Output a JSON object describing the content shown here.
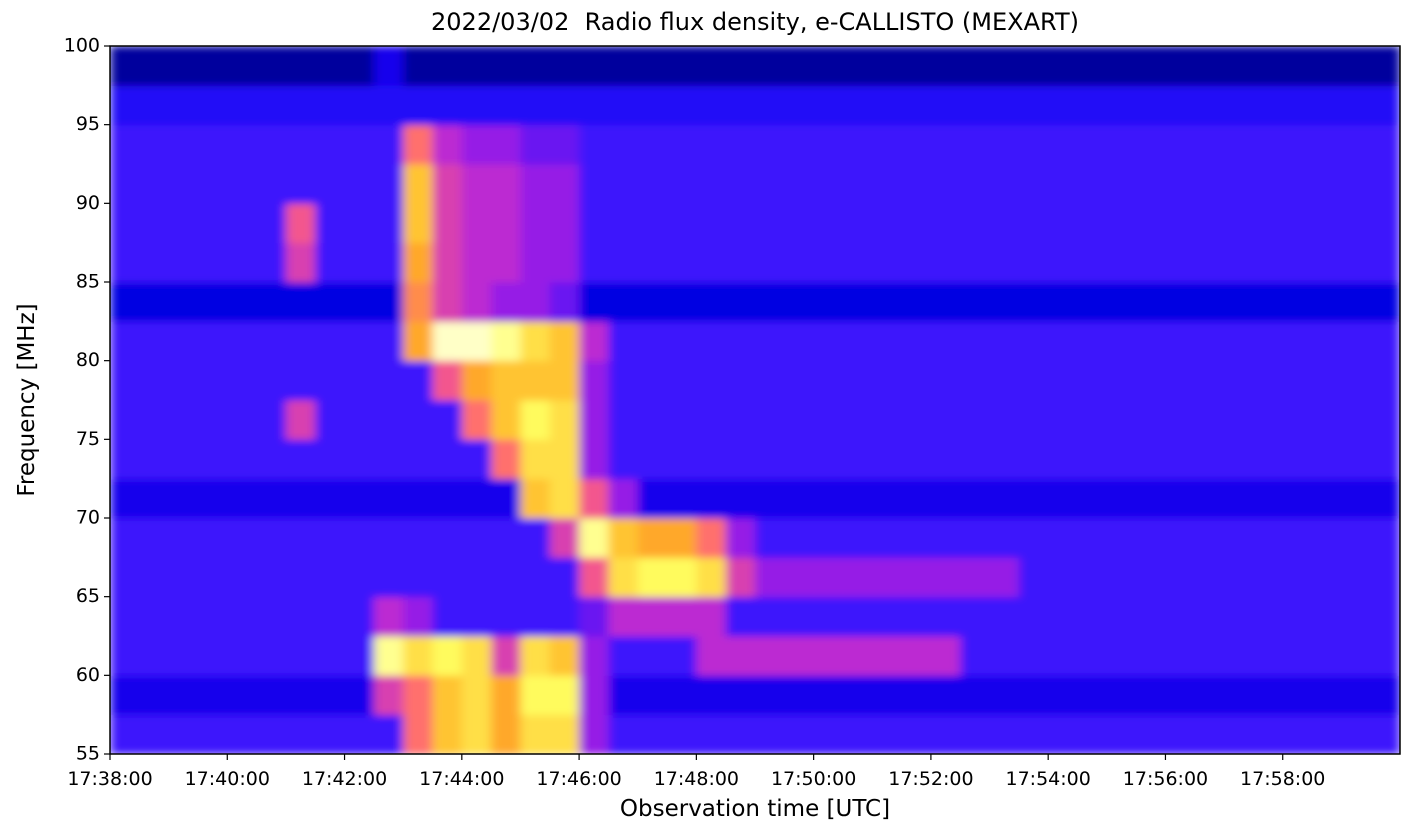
{
  "chart_data": {
    "type": "heatmap",
    "title": "2022/03/02  Radio flux density, e-CALLISTO (MEXART)",
    "x_label": "Observation time [UTC]",
    "y_label": "Frequency [MHz]",
    "xlim": [
      1058,
      1080
    ],
    "ylim": [
      55,
      100
    ],
    "xticks": [
      {
        "value": 1058,
        "label": "17:38:00"
      },
      {
        "value": 1060,
        "label": "17:40:00"
      },
      {
        "value": 1062,
        "label": "17:42:00"
      },
      {
        "value": 1064,
        "label": "17:44:00"
      },
      {
        "value": 1066,
        "label": "17:46:00"
      },
      {
        "value": 1068,
        "label": "17:48:00"
      },
      {
        "value": 1070,
        "label": "17:50:00"
      },
      {
        "value": 1072,
        "label": "17:52:00"
      },
      {
        "value": 1074,
        "label": "17:54:00"
      },
      {
        "value": 1076,
        "label": "17:56:00"
      },
      {
        "value": 1078,
        "label": "17:58:00"
      }
    ],
    "yticks": [
      55,
      60,
      65,
      70,
      75,
      80,
      85,
      90,
      95,
      100
    ],
    "xbins": [
      1058,
      1058.5,
      1059,
      1059.5,
      1060,
      1060.5,
      1061,
      1061.5,
      1062,
      1062.5,
      1063,
      1063.5,
      1064,
      1064.5,
      1065,
      1065.5,
      1066,
      1066.5,
      1067,
      1067.5,
      1068,
      1068.5,
      1069,
      1069.5,
      1070,
      1070.5,
      1071,
      1071.5,
      1072,
      1072.5,
      1073,
      1073.5,
      1074,
      1074.5,
      1075,
      1075.5,
      1076,
      1076.5,
      1077,
      1077.5,
      1078,
      1078.5,
      1079,
      1079.5,
      1080
    ],
    "ybins": [
      55,
      57.5,
      60,
      62.5,
      65,
      67.5,
      70,
      72.5,
      75,
      77.5,
      80,
      82.5,
      85,
      87.5,
      90,
      92.5,
      95,
      97.5,
      100
    ],
    "colormap": [
      "#000000",
      "#0000e0",
      "#3010ff",
      "#b020e0",
      "#ff6080",
      "#ffb020",
      "#ffff60",
      "#ffffff"
    ],
    "values": [
      [
        0.3,
        0.3,
        0.3,
        0.3,
        0.3,
        0.3,
        0.3,
        0.3,
        0.3,
        0.3,
        0.6,
        0.75,
        0.8,
        0.7,
        0.8,
        0.8,
        0.4,
        0.3,
        0.3,
        0.3,
        0.3,
        0.3,
        0.3,
        0.3,
        0.3,
        0.3,
        0.3,
        0.3,
        0.3,
        0.3,
        0.3,
        0.3,
        0.3,
        0.3,
        0.3,
        0.3,
        0.3,
        0.3,
        0.3,
        0.3,
        0.3,
        0.3,
        0.3,
        0.3
      ],
      [
        0.2,
        0.2,
        0.2,
        0.2,
        0.2,
        0.2,
        0.2,
        0.2,
        0.2,
        0.5,
        0.6,
        0.75,
        0.8,
        0.7,
        0.85,
        0.85,
        0.4,
        0.2,
        0.2,
        0.2,
        0.2,
        0.2,
        0.2,
        0.2,
        0.2,
        0.2,
        0.2,
        0.2,
        0.2,
        0.2,
        0.2,
        0.2,
        0.2,
        0.2,
        0.2,
        0.2,
        0.2,
        0.2,
        0.2,
        0.2,
        0.2,
        0.2,
        0.2,
        0.2
      ],
      [
        0.3,
        0.3,
        0.3,
        0.3,
        0.3,
        0.3,
        0.3,
        0.3,
        0.3,
        0.9,
        0.8,
        0.85,
        0.8,
        0.5,
        0.8,
        0.75,
        0.4,
        0.3,
        0.3,
        0.3,
        0.45,
        0.45,
        0.45,
        0.45,
        0.45,
        0.45,
        0.45,
        0.45,
        0.45,
        0.3,
        0.3,
        0.3,
        0.3,
        0.3,
        0.3,
        0.3,
        0.3,
        0.3,
        0.3,
        0.3,
        0.3,
        0.3,
        0.3,
        0.3
      ],
      [
        0.3,
        0.3,
        0.3,
        0.3,
        0.3,
        0.3,
        0.3,
        0.3,
        0.3,
        0.45,
        0.4,
        0.3,
        0.3,
        0.3,
        0.3,
        0.3,
        0.35,
        0.45,
        0.45,
        0.45,
        0.45,
        0.3,
        0.3,
        0.3,
        0.3,
        0.3,
        0.3,
        0.3,
        0.3,
        0.3,
        0.3,
        0.3,
        0.3,
        0.3,
        0.3,
        0.3,
        0.3,
        0.3,
        0.3,
        0.3,
        0.3,
        0.3,
        0.3,
        0.3
      ],
      [
        0.3,
        0.3,
        0.3,
        0.3,
        0.3,
        0.3,
        0.3,
        0.3,
        0.3,
        0.3,
        0.3,
        0.3,
        0.3,
        0.3,
        0.3,
        0.3,
        0.55,
        0.8,
        0.85,
        0.85,
        0.8,
        0.5,
        0.4,
        0.4,
        0.4,
        0.4,
        0.4,
        0.4,
        0.4,
        0.4,
        0.4,
        0.3,
        0.3,
        0.3,
        0.3,
        0.3,
        0.3,
        0.3,
        0.3,
        0.3,
        0.3,
        0.3,
        0.3,
        0.3
      ],
      [
        0.3,
        0.3,
        0.3,
        0.3,
        0.3,
        0.3,
        0.3,
        0.3,
        0.3,
        0.3,
        0.3,
        0.3,
        0.3,
        0.3,
        0.3,
        0.5,
        0.9,
        0.75,
        0.7,
        0.7,
        0.6,
        0.4,
        0.3,
        0.3,
        0.3,
        0.3,
        0.3,
        0.3,
        0.3,
        0.3,
        0.3,
        0.3,
        0.3,
        0.3,
        0.3,
        0.3,
        0.3,
        0.3,
        0.3,
        0.3,
        0.3,
        0.3,
        0.3,
        0.3
      ],
      [
        0.2,
        0.2,
        0.2,
        0.2,
        0.2,
        0.2,
        0.2,
        0.2,
        0.2,
        0.2,
        0.2,
        0.2,
        0.2,
        0.2,
        0.75,
        0.8,
        0.55,
        0.4,
        0.2,
        0.2,
        0.2,
        0.2,
        0.2,
        0.2,
        0.2,
        0.2,
        0.2,
        0.2,
        0.2,
        0.2,
        0.2,
        0.2,
        0.2,
        0.2,
        0.2,
        0.2,
        0.2,
        0.2,
        0.2,
        0.2,
        0.2,
        0.2,
        0.2,
        0.2
      ],
      [
        0.3,
        0.3,
        0.3,
        0.3,
        0.3,
        0.3,
        0.3,
        0.3,
        0.3,
        0.3,
        0.3,
        0.3,
        0.3,
        0.6,
        0.8,
        0.8,
        0.4,
        0.3,
        0.3,
        0.3,
        0.3,
        0.3,
        0.3,
        0.3,
        0.3,
        0.3,
        0.3,
        0.3,
        0.3,
        0.3,
        0.3,
        0.3,
        0.3,
        0.3,
        0.3,
        0.3,
        0.3,
        0.3,
        0.3,
        0.3,
        0.3,
        0.3,
        0.3,
        0.3
      ],
      [
        0.3,
        0.3,
        0.3,
        0.3,
        0.3,
        0.3,
        0.5,
        0.3,
        0.3,
        0.3,
        0.3,
        0.3,
        0.6,
        0.75,
        0.85,
        0.8,
        0.4,
        0.3,
        0.3,
        0.3,
        0.3,
        0.3,
        0.3,
        0.3,
        0.3,
        0.3,
        0.3,
        0.3,
        0.3,
        0.3,
        0.3,
        0.3,
        0.3,
        0.3,
        0.3,
        0.3,
        0.3,
        0.3,
        0.3,
        0.3,
        0.3,
        0.3,
        0.3,
        0.3
      ],
      [
        0.3,
        0.3,
        0.3,
        0.3,
        0.3,
        0.3,
        0.3,
        0.3,
        0.3,
        0.3,
        0.3,
        0.55,
        0.7,
        0.75,
        0.75,
        0.75,
        0.4,
        0.3,
        0.3,
        0.3,
        0.3,
        0.3,
        0.3,
        0.3,
        0.3,
        0.3,
        0.3,
        0.3,
        0.3,
        0.3,
        0.3,
        0.3,
        0.3,
        0.3,
        0.3,
        0.3,
        0.3,
        0.3,
        0.3,
        0.3,
        0.3,
        0.3,
        0.3,
        0.3
      ],
      [
        0.3,
        0.3,
        0.3,
        0.3,
        0.3,
        0.3,
        0.3,
        0.3,
        0.3,
        0.3,
        0.7,
        0.95,
        0.95,
        0.9,
        0.8,
        0.75,
        0.45,
        0.3,
        0.3,
        0.3,
        0.3,
        0.3,
        0.3,
        0.3,
        0.3,
        0.3,
        0.3,
        0.3,
        0.3,
        0.3,
        0.3,
        0.3,
        0.3,
        0.3,
        0.3,
        0.3,
        0.3,
        0.3,
        0.3,
        0.3,
        0.3,
        0.3,
        0.3,
        0.3
      ],
      [
        0.15,
        0.15,
        0.15,
        0.15,
        0.15,
        0.15,
        0.15,
        0.15,
        0.15,
        0.15,
        0.65,
        0.5,
        0.45,
        0.4,
        0.4,
        0.35,
        0.15,
        0.15,
        0.15,
        0.15,
        0.15,
        0.15,
        0.15,
        0.15,
        0.15,
        0.15,
        0.15,
        0.15,
        0.15,
        0.15,
        0.15,
        0.15,
        0.15,
        0.15,
        0.15,
        0.15,
        0.15,
        0.15,
        0.15,
        0.15,
        0.15,
        0.15,
        0.15,
        0.15
      ],
      [
        0.3,
        0.3,
        0.3,
        0.3,
        0.3,
        0.3,
        0.5,
        0.3,
        0.3,
        0.3,
        0.7,
        0.5,
        0.45,
        0.45,
        0.4,
        0.4,
        0.3,
        0.3,
        0.3,
        0.3,
        0.3,
        0.3,
        0.3,
        0.3,
        0.3,
        0.3,
        0.3,
        0.3,
        0.3,
        0.3,
        0.3,
        0.3,
        0.3,
        0.3,
        0.3,
        0.3,
        0.3,
        0.3,
        0.3,
        0.3,
        0.3,
        0.3,
        0.3,
        0.3
      ],
      [
        0.3,
        0.3,
        0.3,
        0.3,
        0.3,
        0.3,
        0.55,
        0.3,
        0.3,
        0.3,
        0.75,
        0.5,
        0.45,
        0.45,
        0.4,
        0.4,
        0.3,
        0.3,
        0.3,
        0.3,
        0.3,
        0.3,
        0.3,
        0.3,
        0.3,
        0.3,
        0.3,
        0.3,
        0.3,
        0.3,
        0.3,
        0.3,
        0.3,
        0.3,
        0.3,
        0.3,
        0.3,
        0.3,
        0.3,
        0.3,
        0.3,
        0.3,
        0.3,
        0.3
      ],
      [
        0.3,
        0.3,
        0.3,
        0.3,
        0.3,
        0.3,
        0.3,
        0.3,
        0.3,
        0.3,
        0.75,
        0.5,
        0.45,
        0.45,
        0.4,
        0.4,
        0.3,
        0.3,
        0.3,
        0.3,
        0.3,
        0.3,
        0.3,
        0.3,
        0.3,
        0.3,
        0.3,
        0.3,
        0.3,
        0.3,
        0.3,
        0.3,
        0.3,
        0.3,
        0.3,
        0.3,
        0.3,
        0.3,
        0.3,
        0.3,
        0.3,
        0.3,
        0.3,
        0.3
      ],
      [
        0.3,
        0.3,
        0.3,
        0.3,
        0.3,
        0.3,
        0.3,
        0.3,
        0.3,
        0.3,
        0.6,
        0.45,
        0.4,
        0.4,
        0.35,
        0.35,
        0.3,
        0.3,
        0.3,
        0.3,
        0.3,
        0.3,
        0.3,
        0.3,
        0.3,
        0.3,
        0.3,
        0.3,
        0.3,
        0.3,
        0.3,
        0.3,
        0.3,
        0.3,
        0.3,
        0.3,
        0.3,
        0.3,
        0.3,
        0.3,
        0.3,
        0.3,
        0.3,
        0.3
      ],
      [
        0.25,
        0.25,
        0.25,
        0.25,
        0.25,
        0.25,
        0.25,
        0.25,
        0.25,
        0.25,
        0.25,
        0.25,
        0.25,
        0.25,
        0.25,
        0.25,
        0.25,
        0.25,
        0.25,
        0.25,
        0.25,
        0.25,
        0.25,
        0.25,
        0.25,
        0.25,
        0.25,
        0.25,
        0.25,
        0.25,
        0.25,
        0.25,
        0.25,
        0.25,
        0.25,
        0.25,
        0.25,
        0.25,
        0.25,
        0.25,
        0.25,
        0.25,
        0.25,
        0.25
      ],
      [
        0.1,
        0.1,
        0.1,
        0.1,
        0.1,
        0.1,
        0.1,
        0.1,
        0.1,
        0.2,
        0.1,
        0.1,
        0.1,
        0.1,
        0.1,
        0.1,
        0.1,
        0.1,
        0.1,
        0.1,
        0.1,
        0.1,
        0.1,
        0.1,
        0.1,
        0.1,
        0.1,
        0.1,
        0.1,
        0.1,
        0.1,
        0.1,
        0.1,
        0.1,
        0.1,
        0.1,
        0.1,
        0.1,
        0.1,
        0.1,
        0.1,
        0.1,
        0.1,
        0.1
      ]
    ]
  }
}
